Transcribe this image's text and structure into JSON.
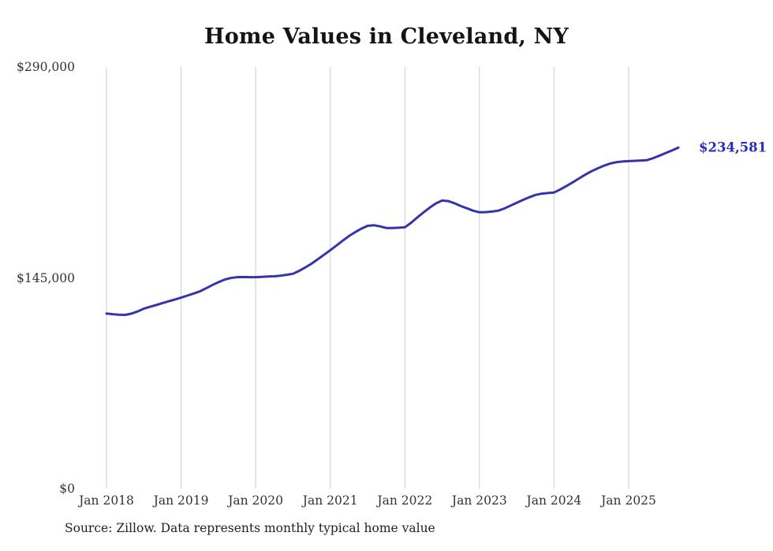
{
  "title": "Home Values in Cleveland, NY",
  "end_label": "$234,581",
  "source_note": "Source: Zillow. Data represents monthly typical home value",
  "colors": {
    "line": "#3733ab",
    "end_label": "#2b2cb8",
    "gridline": "#cccccc",
    "axis_text": "#333333",
    "title_text": "#141414"
  },
  "chart_data": {
    "type": "line",
    "title": "Home Values in Cleveland, NY",
    "xlabel": "",
    "ylabel": "",
    "unit": "USD",
    "ylim": [
      0,
      290000
    ],
    "y_ticks": [
      0,
      145000,
      290000
    ],
    "y_tick_labels": [
      "$0",
      "$145,000",
      "$290,000"
    ],
    "x_tick_labels": [
      "Jan 2018",
      "Jan 2019",
      "Jan 2020",
      "Jan 2021",
      "Jan 2022",
      "Jan 2023",
      "Jan 2024",
      "Jan 2025"
    ],
    "x_start": "2018-01",
    "x_end": "2025-09",
    "x_step": "month",
    "grid": "vertical-only",
    "legend": "none",
    "latest_value": 234581,
    "latest_value_label": "$234,581",
    "series": [
      {
        "name": "Typical home value",
        "values": [
          120500,
          120000,
          119700,
          119500,
          120400,
          121900,
          123800,
          125100,
          126300,
          127600,
          128900,
          130100,
          131400,
          132800,
          134200,
          135700,
          137800,
          140000,
          142000,
          143800,
          144900,
          145500,
          145600,
          145500,
          145500,
          145700,
          145900,
          146100,
          146500,
          147100,
          147800,
          149800,
          152200,
          154800,
          157800,
          160900,
          164000,
          167300,
          170600,
          173800,
          176400,
          178800,
          180800,
          181200,
          180400,
          179300,
          179300,
          179500,
          179800,
          182900,
          186500,
          190000,
          193300,
          196200,
          198200,
          197800,
          196300,
          194400,
          192800,
          191200,
          190100,
          190200,
          190600,
          191200,
          192700,
          194700,
          196600,
          198600,
          200400,
          202000,
          202900,
          203300,
          203700,
          205800,
          208200,
          210700,
          213300,
          215900,
          218300,
          220300,
          222100,
          223600,
          224500,
          225000,
          225300,
          225500,
          225700,
          226000,
          227400,
          229100,
          230900,
          232700,
          234581
        ]
      }
    ]
  }
}
